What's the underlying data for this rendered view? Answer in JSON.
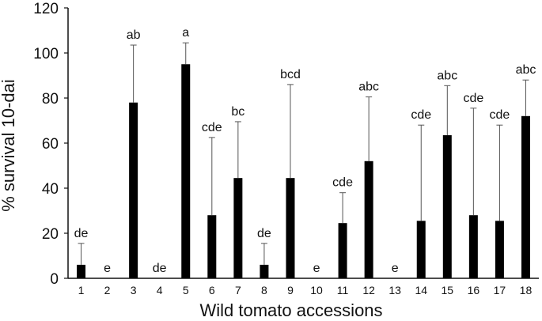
{
  "chart_data": {
    "type": "bar",
    "xlabel": "Wild tomato accessions",
    "ylabel": "% survival 10-dai",
    "ylim": [
      0,
      120
    ],
    "yticks": [
      0,
      20,
      40,
      60,
      80,
      100,
      120
    ],
    "grid": false,
    "categories": [
      "1",
      "2",
      "3",
      "4",
      "5",
      "6",
      "7",
      "8",
      "9",
      "10",
      "11",
      "12",
      "13",
      "14",
      "15",
      "16",
      "17",
      "18"
    ],
    "values": [
      6,
      0,
      78,
      0,
      95,
      28,
      44.5,
      6,
      44.5,
      0,
      24.5,
      52,
      0,
      25.5,
      63.5,
      28,
      25.5,
      72
    ],
    "error_upper": [
      15.5,
      null,
      103.5,
      null,
      104.5,
      62.5,
      69.5,
      15.5,
      86,
      null,
      38,
      80.5,
      null,
      68,
      85.5,
      75.5,
      68,
      88
    ],
    "significance": [
      "de",
      "e",
      "ab",
      "de",
      "a",
      "cde",
      "bc",
      "de",
      "bcd",
      "e",
      "cde",
      "abc",
      "e",
      "cde",
      "abc",
      "cde",
      "cde",
      "abc"
    ],
    "bar_color": "#000000"
  }
}
